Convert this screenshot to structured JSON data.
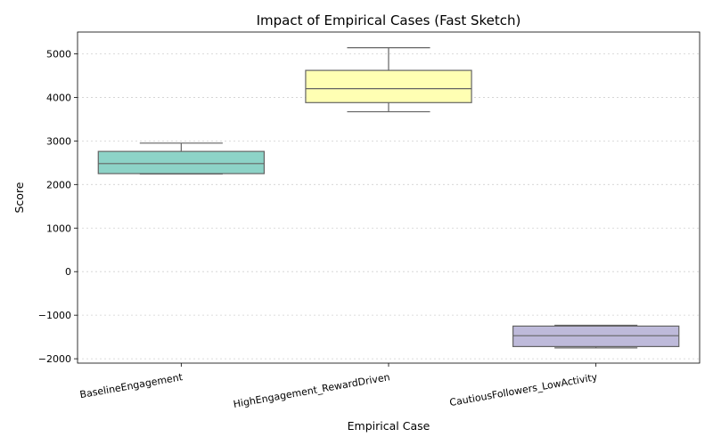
{
  "chart_data": {
    "type": "box",
    "title": "Impact of Empirical Cases (Fast Sketch)",
    "xlabel": "Empirical Case",
    "ylabel": "Score",
    "ylim": [
      -2100,
      5500
    ],
    "yticks": [
      -2000,
      -1000,
      0,
      1000,
      2000,
      3000,
      4000,
      5000
    ],
    "ytick_labels": [
      "−2000",
      "−1000",
      "0",
      "1000",
      "2000",
      "3000",
      "4000",
      "5000"
    ],
    "grid": "y-dotted",
    "legend": "none",
    "categories": [
      "BaselineEngagement",
      "HighEngagement_RewardDriven",
      "CautiousFollowers_LowActivity"
    ],
    "boxes": [
      {
        "category": "BaselineEngagement",
        "whisker_low": 2240,
        "q1": 2250,
        "median": 2480,
        "q3": 2760,
        "whisker_high": 2950,
        "color": "#8dd3c7"
      },
      {
        "category": "HighEngagement_RewardDriven",
        "whisker_low": 3670,
        "q1": 3880,
        "median": 4200,
        "q3": 4620,
        "whisker_high": 5140,
        "color": "#ffffb3"
      },
      {
        "category": "CautiousFollowers_LowActivity",
        "whisker_low": -1750,
        "q1": -1720,
        "median": -1470,
        "q3": -1250,
        "whisker_high": -1230,
        "color": "#bebada"
      }
    ]
  }
}
